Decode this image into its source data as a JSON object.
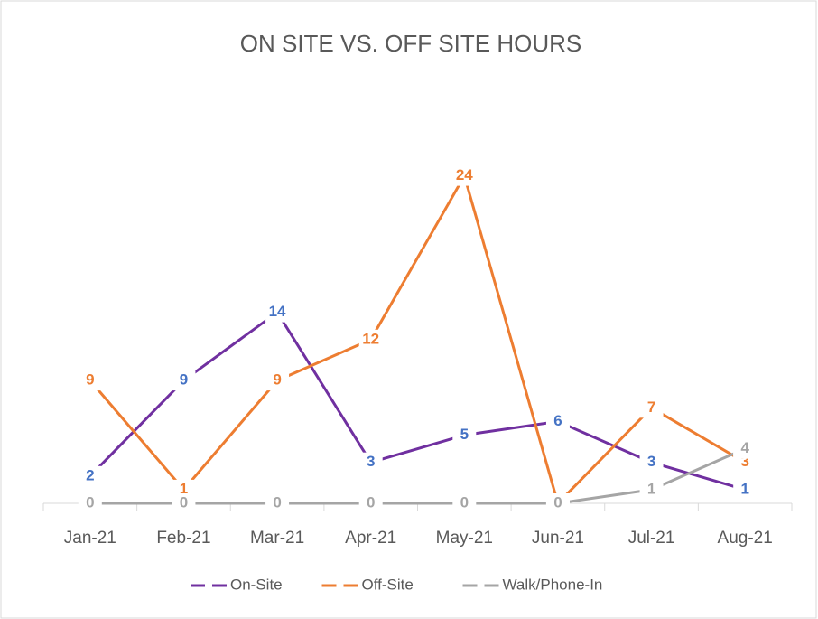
{
  "chart_data": {
    "type": "line",
    "title": "ON SITE VS. OFF SITE HOURS",
    "categories": [
      "Jan-21",
      "Feb-21",
      "Mar-21",
      "Apr-21",
      "May-21",
      "Jun-21",
      "Jul-21",
      "Aug-21"
    ],
    "series": [
      {
        "name": "On-Site",
        "color": "#7030a0",
        "label_color": "#4472c4",
        "values": [
          2,
          9,
          14,
          3,
          5,
          6,
          3,
          1
        ]
      },
      {
        "name": "Off-Site",
        "color": "#ed7d31",
        "label_color": "#ed7d31",
        "values": [
          9,
          1,
          9,
          12,
          24,
          0,
          7,
          3
        ]
      },
      {
        "name": "Walk/Phone-In",
        "color": "#a5a5a5",
        "label_color": "#a5a5a5",
        "values": [
          0,
          0,
          0,
          0,
          0,
          0,
          1,
          4
        ]
      }
    ],
    "ylim": [
      0,
      30
    ],
    "grid": false,
    "legend": "bottom"
  }
}
